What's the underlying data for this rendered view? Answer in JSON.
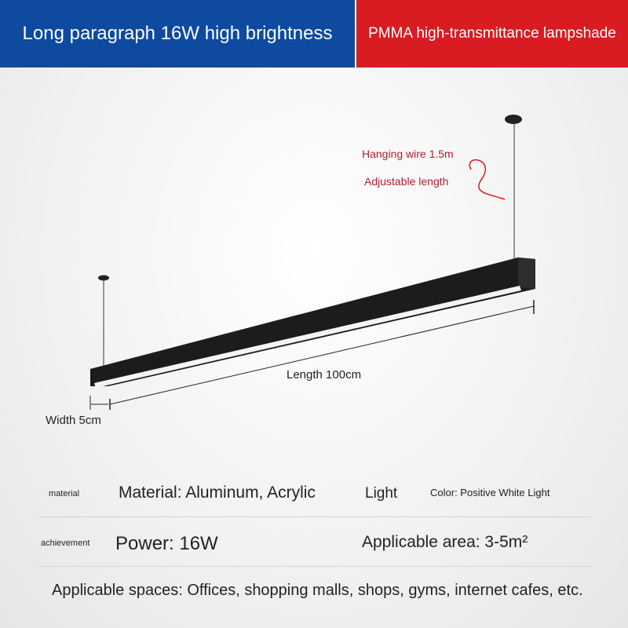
{
  "banner": {
    "left": "Long paragraph 16W high brightness",
    "right": "PMMA high-transmittance lampshade"
  },
  "annotations": {
    "wire": "Hanging wire 1.5m",
    "adjust": "Adjustable length"
  },
  "dimensions": {
    "length": "Length 100cm",
    "width": "Width 5cm"
  },
  "specs": {
    "rows": [
      [
        "material",
        "Material: Aluminum, Acrylic",
        "Light",
        "Color: Positive White Light"
      ],
      [
        "achievement",
        "Power: 16W",
        "Applicable area: 3-5m²"
      ]
    ],
    "footer": "Applicable spaces: Offices, shopping malls, shops, gyms, internet cafes, etc."
  }
}
